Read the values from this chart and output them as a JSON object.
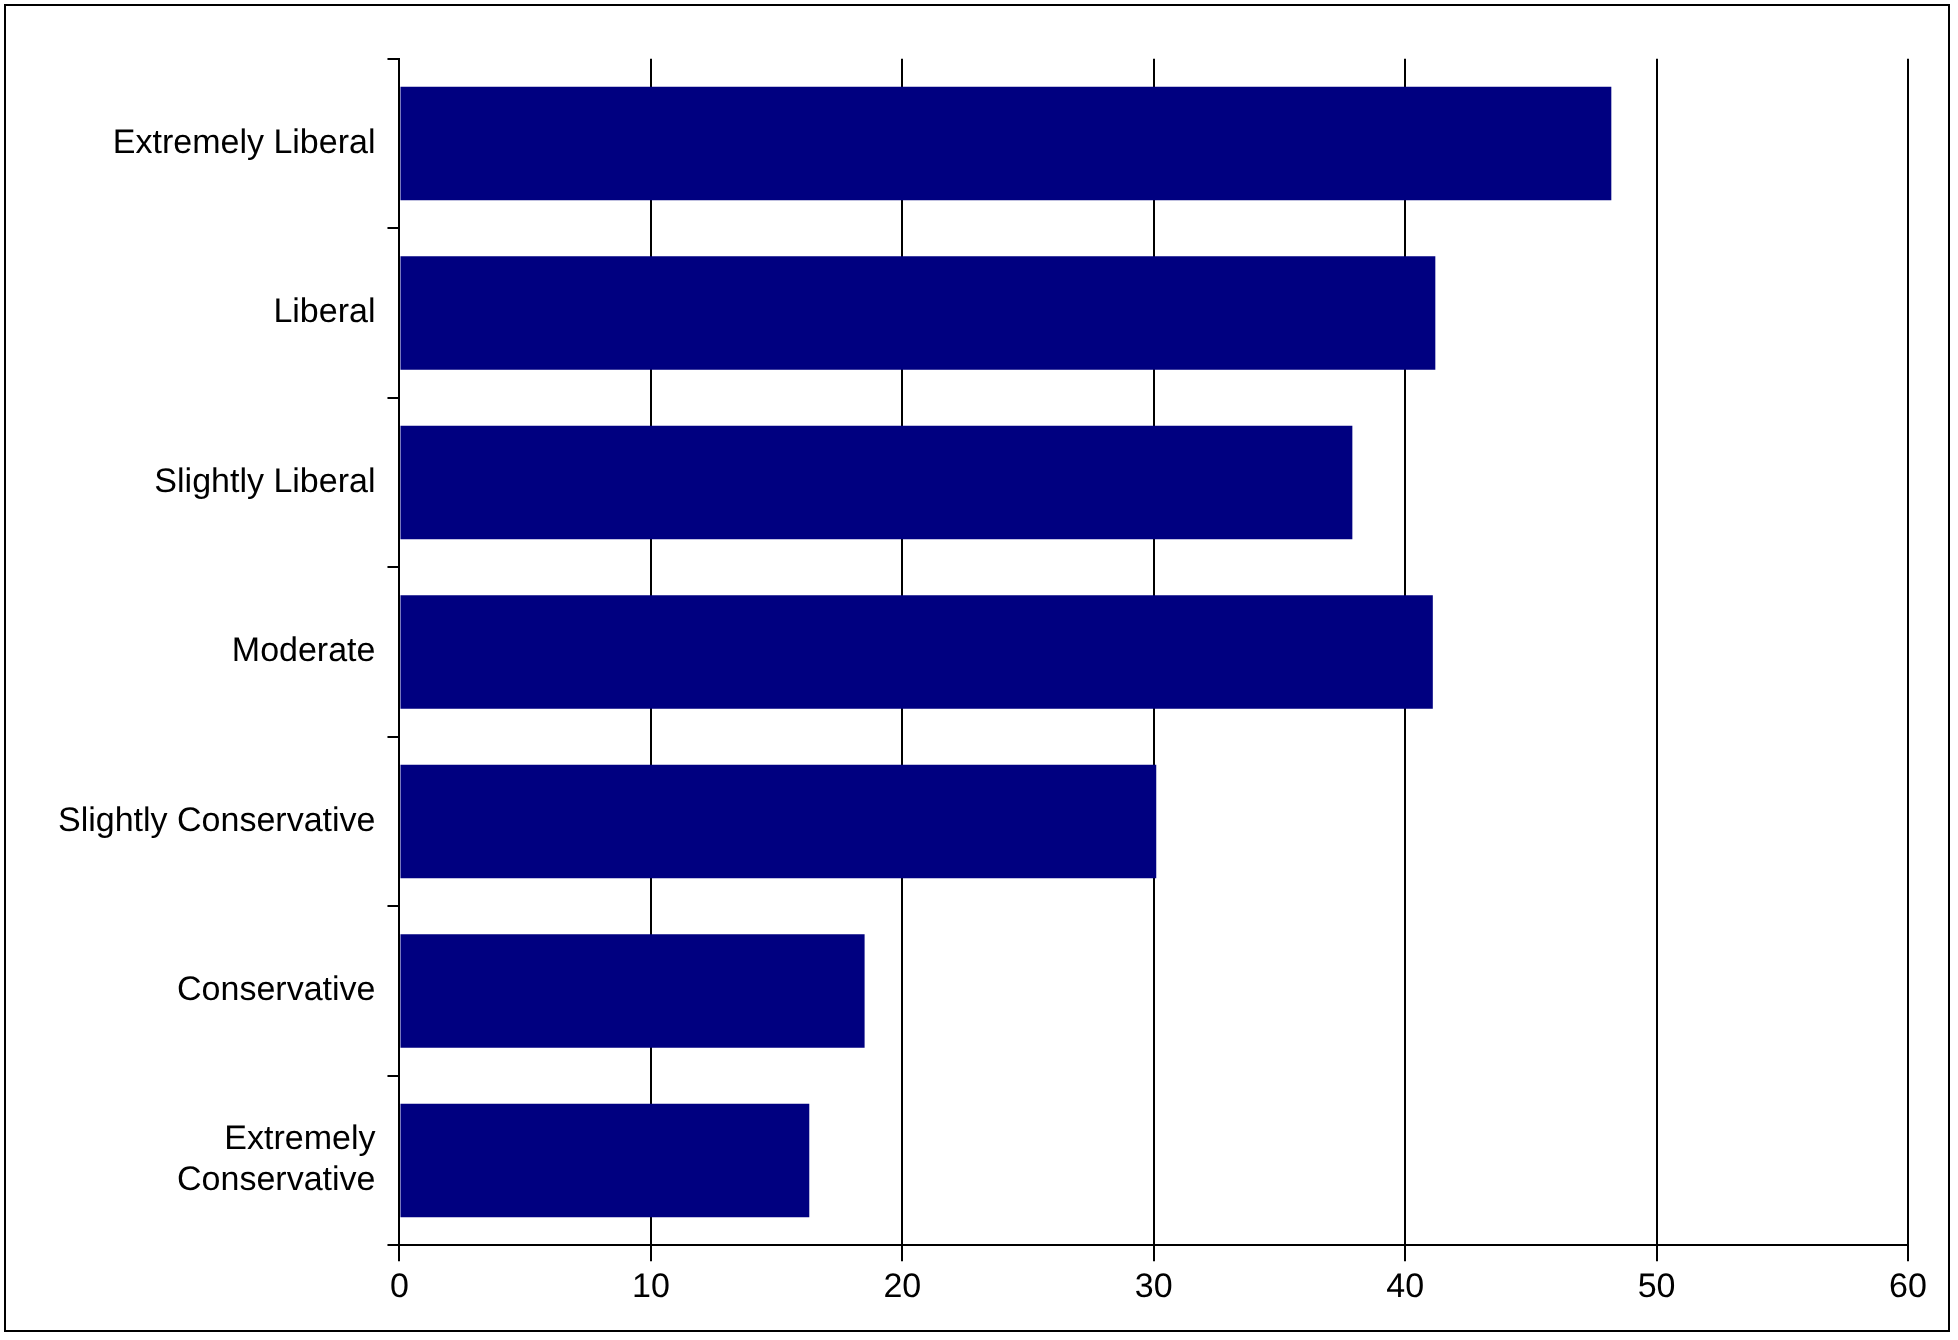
{
  "chart_data": {
    "type": "bar",
    "orientation": "horizontal",
    "categories": [
      "Extremely Liberal",
      "Liberal",
      "Slightly Liberal",
      "Moderate",
      "Slightly Conservative",
      "Conservative",
      "Extremely Conservative"
    ],
    "values": [
      48.2,
      41.2,
      37.9,
      41.1,
      30.1,
      18.5,
      16.3
    ],
    "color": "#000080",
    "xlim": [
      0,
      60
    ],
    "xticks": [
      0,
      10,
      20,
      30,
      40,
      50,
      60
    ],
    "grid": "x"
  }
}
